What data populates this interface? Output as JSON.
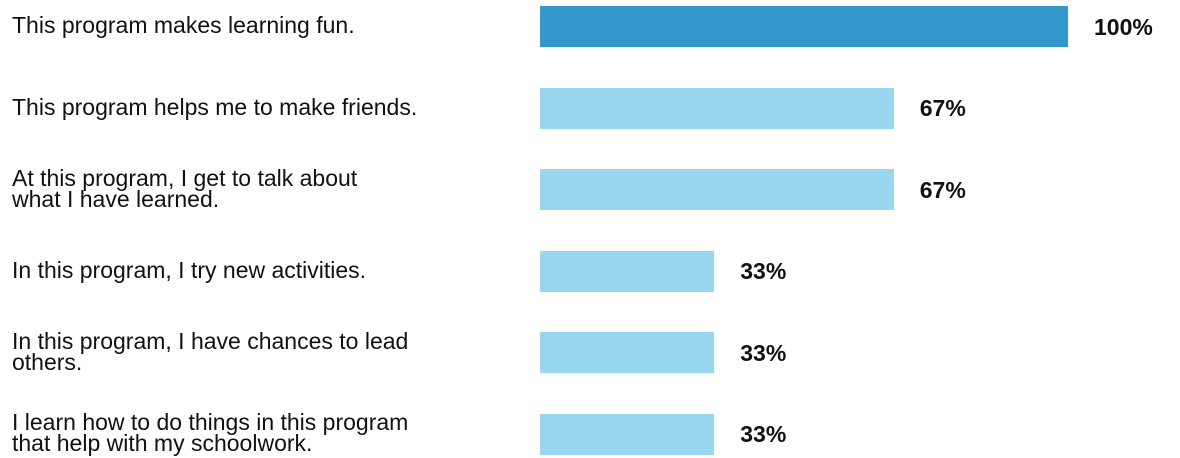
{
  "chart_data": {
    "type": "bar",
    "orientation": "horizontal",
    "categories": [
      "This program makes learning fun.",
      "This program helps me to make friends.",
      "At this program, I get to talk about\nwhat I have learned.",
      "In this program, I try new activities.",
      "In this program, I have chances to lead\nothers.",
      "I learn how to do things in this program\nthat help with my schoolwork."
    ],
    "values": [
      100,
      67,
      67,
      33,
      33,
      33
    ],
    "value_labels": [
      "100%",
      "67%",
      "67%",
      "33%",
      "33%",
      "33%"
    ],
    "xlim": [
      0,
      100
    ],
    "highlight_index": 0,
    "colors": {
      "highlight": "#3399CC",
      "default": "#99D6F0",
      "text": "#111111"
    },
    "title": "",
    "xlabel": "",
    "ylabel": "",
    "grid": false,
    "legend": "none"
  }
}
